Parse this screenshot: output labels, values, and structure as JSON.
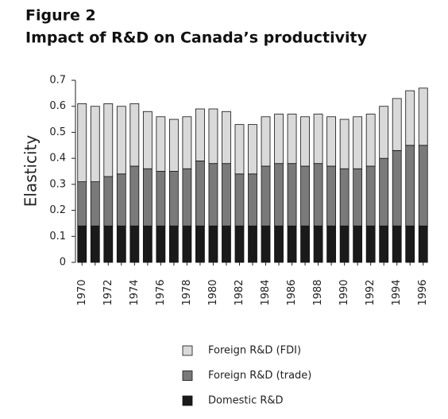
{
  "chart_data": {
    "type": "stacked-bar",
    "title": "Figure 2",
    "subtitle": "Impact of R&D on Canada’s productivity",
    "y_label": "Elasticity",
    "categories": [
      "1970",
      null,
      "1972",
      null,
      "1974",
      null,
      "1976",
      null,
      "1978",
      null,
      "1980",
      null,
      "1982",
      null,
      "1984",
      null,
      "1986",
      null,
      "1988",
      null,
      "1990",
      null,
      "1992",
      null,
      "1994",
      null,
      "1996"
    ],
    "series": [
      {
        "name": "Domestic R&D",
        "color": "#1a1a1a",
        "values": [
          0.14,
          0.14,
          0.14,
          0.14,
          0.14,
          0.14,
          0.14,
          0.14,
          0.14,
          0.14,
          0.14,
          0.14,
          0.14,
          0.14,
          0.14,
          0.14,
          0.14,
          0.14,
          0.14,
          0.14,
          0.14,
          0.14,
          0.14,
          0.14,
          0.14,
          0.14,
          0.14
        ]
      },
      {
        "name": "Foreign R&D (trade)",
        "color": "#7a7a7a",
        "values": [
          0.17,
          0.17,
          0.19,
          0.2,
          0.23,
          0.22,
          0.21,
          0.21,
          0.22,
          0.25,
          0.24,
          0.24,
          0.2,
          0.2,
          0.23,
          0.24,
          0.24,
          0.23,
          0.24,
          0.23,
          0.22,
          0.22,
          0.23,
          0.26,
          0.29,
          0.31,
          0.31
        ]
      },
      {
        "name": "Foreign R&D (FDI)",
        "color": "#d9d9d9",
        "values": [
          0.3,
          0.29,
          0.28,
          0.26,
          0.24,
          0.22,
          0.21,
          0.2,
          0.2,
          0.2,
          0.21,
          0.2,
          0.19,
          0.19,
          0.19,
          0.19,
          0.19,
          0.19,
          0.19,
          0.19,
          0.19,
          0.2,
          0.2,
          0.2,
          0.2,
          0.21,
          0.22
        ]
      }
    ],
    "ylim": [
      0,
      0.7
    ],
    "yticks": [
      0,
      0.1,
      0.2,
      0.3,
      0.4,
      0.5,
      0.6,
      0.7
    ]
  }
}
